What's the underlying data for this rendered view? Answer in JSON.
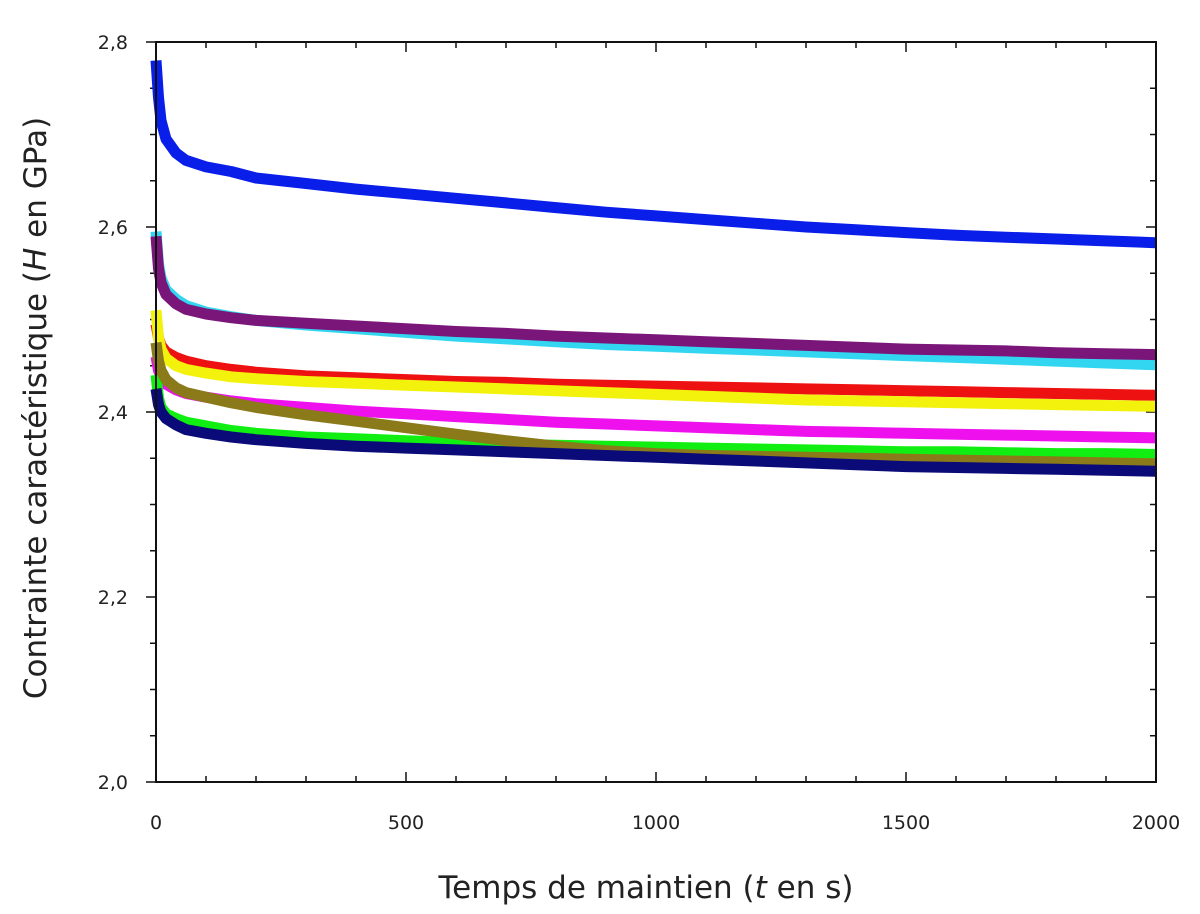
{
  "chart_data": {
    "type": "line",
    "title": "",
    "xlabel": {
      "before": "Temps de maintien (",
      "var": "t",
      "after": " en s)"
    },
    "ylabel": {
      "before": "Contrainte caractéristique (",
      "var": "H",
      "after": " en GPa)"
    },
    "xlim": [
      0,
      2000
    ],
    "ylim": [
      2.0,
      2.8
    ],
    "x_ticks": [
      0,
      500,
      1000,
      1500,
      2000
    ],
    "x_tick_labels": [
      "0",
      "500",
      "1000",
      "1500",
      "2000"
    ],
    "y_ticks": [
      2.0,
      2.2,
      2.4,
      2.6,
      2.8
    ],
    "y_tick_labels": [
      "2,0",
      "2,2",
      "2,4",
      "2,6",
      "2,8"
    ],
    "grid": false,
    "legend": "none",
    "x": [
      0,
      5,
      10,
      20,
      40,
      60,
      100,
      150,
      200,
      300,
      400,
      500,
      600,
      700,
      800,
      900,
      1000,
      1100,
      1200,
      1300,
      1400,
      1500,
      1600,
      1700,
      1800,
      1900,
      2000
    ],
    "series": [
      {
        "color": "#0a1eea",
        "values": [
          2.78,
          2.74,
          2.715,
          2.695,
          2.68,
          2.672,
          2.665,
          2.66,
          2.653,
          2.647,
          2.641,
          2.636,
          2.631,
          2.626,
          2.621,
          2.616,
          2.612,
          2.608,
          2.604,
          2.6,
          2.597,
          2.594,
          2.591,
          2.589,
          2.587,
          2.585,
          2.583
        ]
      },
      {
        "color": "#33d6f0",
        "values": [
          2.595,
          2.56,
          2.545,
          2.532,
          2.522,
          2.515,
          2.508,
          2.503,
          2.499,
          2.494,
          2.49,
          2.486,
          2.482,
          2.479,
          2.476,
          2.473,
          2.471,
          2.469,
          2.467,
          2.465,
          2.463,
          2.461,
          2.459,
          2.457,
          2.455,
          2.453,
          2.451
        ]
      },
      {
        "color": "#7a157a",
        "values": [
          2.59,
          2.555,
          2.54,
          2.527,
          2.517,
          2.511,
          2.506,
          2.502,
          2.499,
          2.496,
          2.493,
          2.49,
          2.487,
          2.485,
          2.482,
          2.48,
          2.478,
          2.476,
          2.474,
          2.472,
          2.47,
          2.468,
          2.467,
          2.466,
          2.464,
          2.463,
          2.462
        ]
      },
      {
        "color": "#ee1111",
        "values": [
          2.495,
          2.48,
          2.472,
          2.465,
          2.459,
          2.455,
          2.45,
          2.446,
          2.443,
          2.439,
          2.437,
          2.435,
          2.433,
          2.432,
          2.43,
          2.429,
          2.428,
          2.427,
          2.426,
          2.425,
          2.424,
          2.423,
          2.422,
          2.421,
          2.42,
          2.419,
          2.418
        ]
      },
      {
        "color": "#f2f20d",
        "values": [
          2.51,
          2.48,
          2.468,
          2.458,
          2.45,
          2.446,
          2.442,
          2.438,
          2.436,
          2.433,
          2.431,
          2.429,
          2.427,
          2.425,
          2.423,
          2.421,
          2.419,
          2.417,
          2.415,
          2.413,
          2.412,
          2.411,
          2.41,
          2.409,
          2.408,
          2.407,
          2.406
        ]
      },
      {
        "color": "#ee11ee",
        "values": [
          2.46,
          2.445,
          2.438,
          2.43,
          2.424,
          2.42,
          2.416,
          2.412,
          2.409,
          2.405,
          2.401,
          2.398,
          2.395,
          2.392,
          2.389,
          2.387,
          2.385,
          2.383,
          2.381,
          2.379,
          2.378,
          2.377,
          2.376,
          2.375,
          2.374,
          2.373,
          2.372
        ]
      },
      {
        "color": "#11ee11",
        "values": [
          2.44,
          2.415,
          2.405,
          2.398,
          2.393,
          2.389,
          2.385,
          2.38,
          2.377,
          2.373,
          2.371,
          2.369,
          2.367,
          2.365,
          2.364,
          2.363,
          2.362,
          2.361,
          2.36,
          2.359,
          2.358,
          2.357,
          2.357,
          2.356,
          2.355,
          2.355,
          2.354
        ]
      },
      {
        "color": "#8a7a1a",
        "values": [
          2.475,
          2.455,
          2.445,
          2.435,
          2.426,
          2.421,
          2.416,
          2.41,
          2.405,
          2.397,
          2.39,
          2.383,
          2.376,
          2.369,
          2.363,
          2.358,
          2.355,
          2.353,
          2.352,
          2.351,
          2.35,
          2.349,
          2.348,
          2.347,
          2.346,
          2.345,
          2.344
        ]
      },
      {
        "color": "#0a0a78",
        "values": [
          2.425,
          2.408,
          2.4,
          2.393,
          2.386,
          2.381,
          2.377,
          2.373,
          2.37,
          2.366,
          2.363,
          2.361,
          2.359,
          2.357,
          2.355,
          2.353,
          2.351,
          2.349,
          2.347,
          2.345,
          2.343,
          2.341,
          2.34,
          2.339,
          2.338,
          2.337,
          2.336
        ]
      }
    ]
  }
}
